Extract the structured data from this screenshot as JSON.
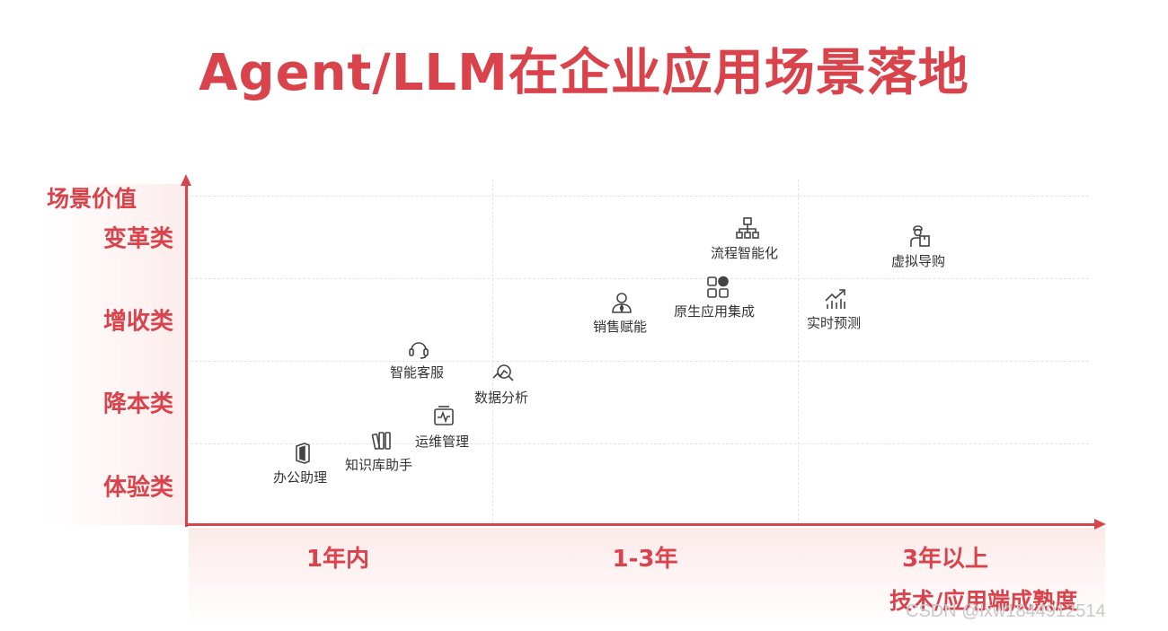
{
  "title": "Agent/LLM在企业应用场景落地",
  "y_axis": {
    "title": "场景价值",
    "labels": [
      "体验类",
      "降本类",
      "增收类",
      "变革类"
    ]
  },
  "x_axis": {
    "title": "技术/应用端成熟度",
    "labels": [
      "1年内",
      "1-3年",
      "3年以上"
    ]
  },
  "items": [
    {
      "label": "办公助理",
      "icon": "office-icon"
    },
    {
      "label": "知识库助手",
      "icon": "books-icon"
    },
    {
      "label": "运维管理",
      "icon": "monitor-pulse-icon"
    },
    {
      "label": "智能客服",
      "icon": "headset-icon"
    },
    {
      "label": "数据分析",
      "icon": "chart-search-icon"
    },
    {
      "label": "销售赋能",
      "icon": "person-tie-icon"
    },
    {
      "label": "原生应用集成",
      "icon": "app-grid-icon"
    },
    {
      "label": "流程智能化",
      "icon": "flowchart-icon"
    },
    {
      "label": "实时预测",
      "icon": "trend-chart-icon"
    },
    {
      "label": "虚拟导购",
      "icon": "shopping-assistant-icon"
    }
  ],
  "watermark": "CSDN @lxw1844912514",
  "colors": {
    "accent": "#d9434b",
    "text": "#333333",
    "icon": "#444444"
  }
}
